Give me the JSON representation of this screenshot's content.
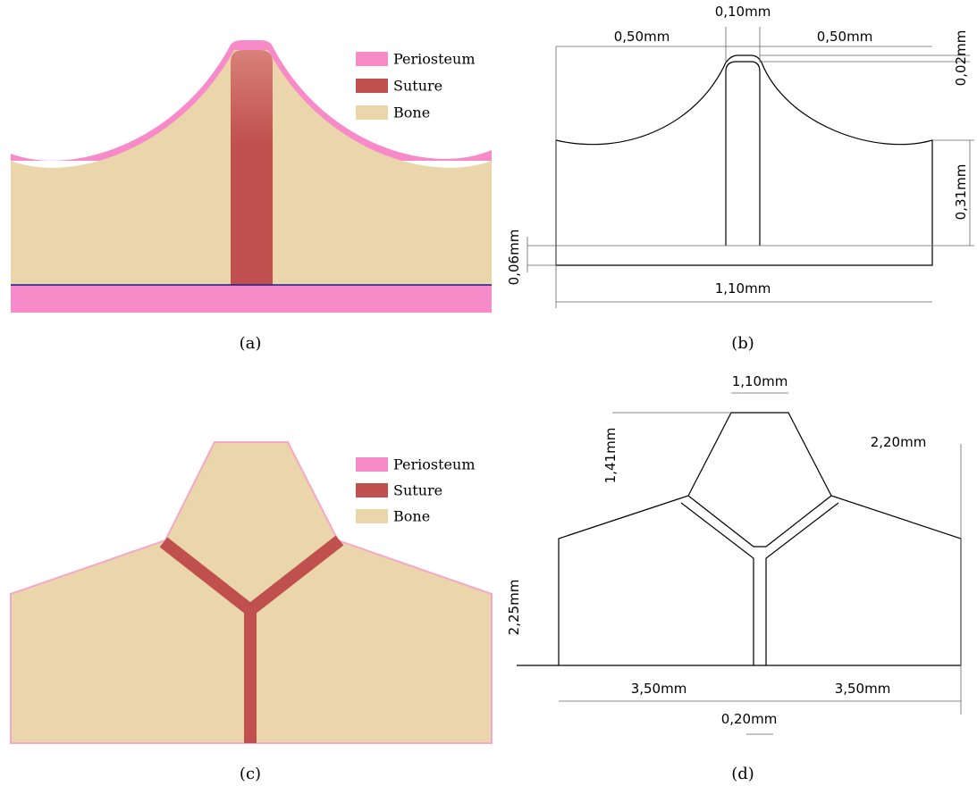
{
  "panels": [
    {
      "label": "(a)",
      "legend": [
        "Periosteum",
        "Suture",
        "Bone"
      ]
    },
    {
      "label": "(b)",
      "dimensions": [
        "0,10mm",
        "0,50mm",
        "0,50mm",
        "0,02mm",
        "0,31mm",
        "0,06mm",
        "1,10mm"
      ]
    },
    {
      "label": "(c)",
      "legend": [
        "Periosteum",
        "Suture",
        "Bone"
      ]
    },
    {
      "label": "(d)",
      "dimensions": [
        "1,10mm",
        "1,41mm",
        "2,20mm",
        "2,25mm",
        "3,50mm",
        "3,50mm",
        "0,20mm"
      ]
    }
  ]
}
